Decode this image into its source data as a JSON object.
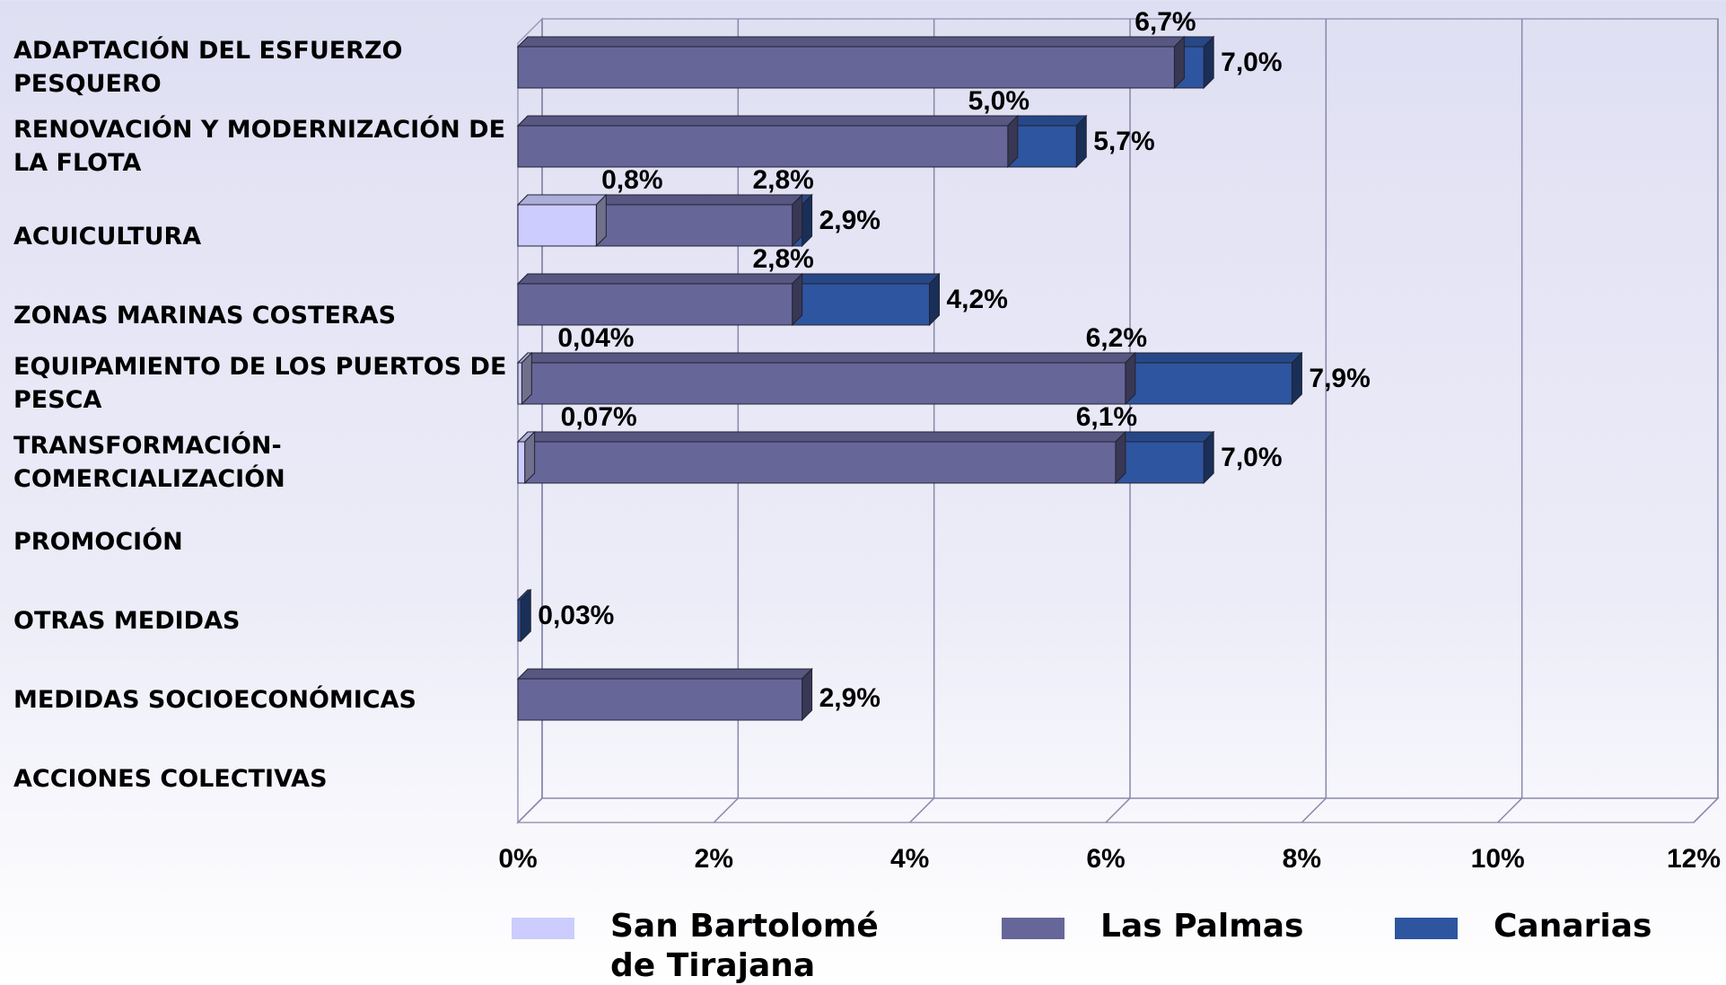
{
  "chart_data": {
    "type": "bar",
    "categories": [
      "ADAPTACIÓN DEL ESFUERZO PESQUERO",
      "RENOVACIÓN Y MODERNIZACIÓN DE LA FLOTA",
      "ACUICULTURA",
      "ZONAS MARINAS COSTERAS",
      "EQUIPAMIENTO DE LOS PUERTOS DE PESCA",
      "TRANSFORMACIÓN-COMERCIALIZACIÓN",
      "PROMOCIÓN",
      "OTRAS MEDIDAS",
      "MEDIDAS SOCIOECONÓMICAS",
      "ACCIONES COLECTIVAS"
    ],
    "series": [
      {
        "name": "San Bartolomé de Tirajana",
        "color": "#ccccff",
        "values": [
          null,
          null,
          0.8,
          null,
          0.04,
          0.07,
          null,
          null,
          null,
          null
        ],
        "value_labels": [
          null,
          null,
          "0,8%",
          null,
          "0,04%",
          "0,07%",
          null,
          null,
          null,
          null
        ]
      },
      {
        "name": "Las Palmas",
        "color": "#666699",
        "values": [
          6.7,
          5.0,
          2.8,
          2.8,
          6.2,
          6.1,
          null,
          null,
          2.9,
          null
        ],
        "value_labels": [
          "6,7%",
          "5,0%",
          "2,8%",
          "2,8%",
          "6,2%",
          "6,1%",
          null,
          null,
          "2,9%",
          null
        ]
      },
      {
        "name": "Canarias",
        "color": "#2e559f",
        "values": [
          7.0,
          5.7,
          2.9,
          4.2,
          7.9,
          7.0,
          null,
          0.03,
          null,
          null
        ],
        "value_labels": [
          "7,0%",
          "5,7%",
          "2,9%",
          "4,2%",
          "7,9%",
          "7,0%",
          null,
          "0,03%",
          null,
          null
        ]
      }
    ],
    "xlim": [
      0,
      12
    ],
    "xticks": [
      {
        "value": 0,
        "label": "0%"
      },
      {
        "value": 2,
        "label": "2%"
      },
      {
        "value": 4,
        "label": "4%"
      },
      {
        "value": 6,
        "label": "6%"
      },
      {
        "value": 8,
        "label": "8%"
      },
      {
        "value": 10,
        "label": "10%"
      },
      {
        "value": 12,
        "label": "12%"
      }
    ],
    "grid": true
  }
}
